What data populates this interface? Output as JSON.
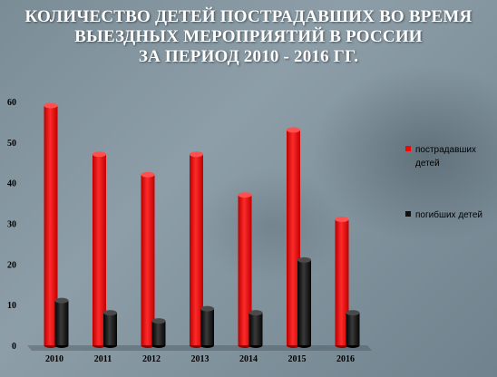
{
  "title": {
    "line1": "КОЛИЧЕСТВО ДЕТЕЙ ПОСТРАДАВШИХ ВО ВРЕМЯ",
    "line2": "ВЫЕЗДНЫХ МЕРОПРИЯТИЙ В РОССИИ",
    "line3": "ЗА ПЕРИОД 2010 - 2016 ГГ."
  },
  "legend": {
    "injured_line1": "пострадавших",
    "injured_line2": "детей",
    "killed": "погибших детей"
  },
  "colors": {
    "injured": "#ff0000",
    "killed": "#111111"
  },
  "chart_data": {
    "type": "bar",
    "categories": [
      "2010",
      "2011",
      "2012",
      "2013",
      "2014",
      "2015",
      "2016"
    ],
    "series": [
      {
        "name": "пострадавших детей",
        "values": [
          59,
          47,
          42,
          47,
          37,
          53,
          31
        ]
      },
      {
        "name": "погибших детей",
        "values": [
          11,
          8,
          6,
          9,
          8,
          21,
          8
        ]
      }
    ],
    "yticks": [
      "0",
      "10",
      "20",
      "30",
      "40",
      "50",
      "60"
    ],
    "ylim": [
      0,
      60
    ],
    "legend_position": "right",
    "grid": false
  }
}
